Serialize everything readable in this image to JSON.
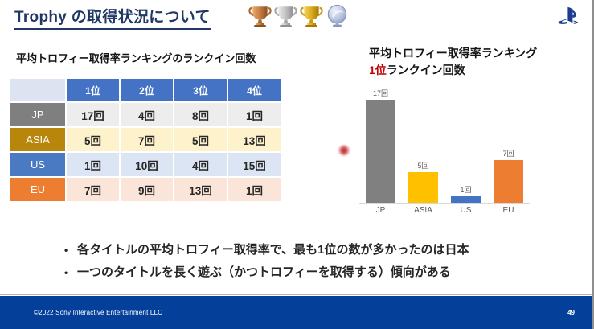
{
  "page": {
    "title": "Trophy の取得状況について",
    "title_color": "#1f3864",
    "trophy_icons": [
      "bronze-trophy",
      "silver-trophy",
      "gold-trophy",
      "platinum-trophy"
    ]
  },
  "left_section": {
    "title": "平均トロフィー取得率ランキングのランクイン回数",
    "table": {
      "header_bg": "#4472c4",
      "corner_bg": "#dee3f1",
      "col_headers": [
        "1位",
        "2位",
        "3位",
        "4位"
      ],
      "rows": [
        {
          "label": "JP",
          "label_bg": "#7f7f7f",
          "cell_bg": "#ededee",
          "cells": [
            "17回",
            "4回",
            "8回",
            "1回"
          ]
        },
        {
          "label": "ASIA",
          "label_bg": "#b8860b",
          "cell_bg": "#fdf2cc",
          "cells": [
            "5回",
            "7回",
            "5回",
            "13回"
          ]
        },
        {
          "label": "US",
          "label_bg": "#4a7ac2",
          "cell_bg": "#dbe5f3",
          "cells": [
            "1回",
            "10回",
            "4回",
            "15回"
          ]
        },
        {
          "label": "EU",
          "label_bg": "#ed7d31",
          "cell_bg": "#fbe5d8",
          "cells": [
            "7回",
            "9回",
            "13回",
            "1回"
          ]
        }
      ]
    }
  },
  "chart": {
    "title_line1": "平均トロフィー取得率ランキング",
    "title_line2_highlight": "1位",
    "title_line2_rest": "ランクイン回数",
    "highlight_color": "#c00000"
  },
  "chart_data": {
    "type": "bar",
    "title": "平均トロフィー取得率ランキング 1位ランクイン回数",
    "categories": [
      "JP",
      "ASIA",
      "US",
      "EU"
    ],
    "values": [
      17,
      5,
      1,
      7
    ],
    "value_labels": [
      "17回",
      "5回",
      "1回",
      "7回"
    ],
    "bar_colors": [
      "#808080",
      "#ffc000",
      "#4472c4",
      "#ed7d31"
    ],
    "unit": "回",
    "xlabel": "",
    "ylabel": "",
    "ylim": [
      0,
      17
    ],
    "grid": false,
    "legend": false,
    "axis_line_color": "#d9d9d9"
  },
  "bullets": [
    "各タイトルの平均トロフィー取得率で、最も1位の数が多かったのは日本",
    "一つのタイトルを長く遊ぶ（かつトロフィーを取得する）傾向がある"
  ],
  "footer": {
    "copyright": "©2022 Sony Interactive Entertainment LLC",
    "page_number": "49",
    "bg": "#04409a"
  }
}
